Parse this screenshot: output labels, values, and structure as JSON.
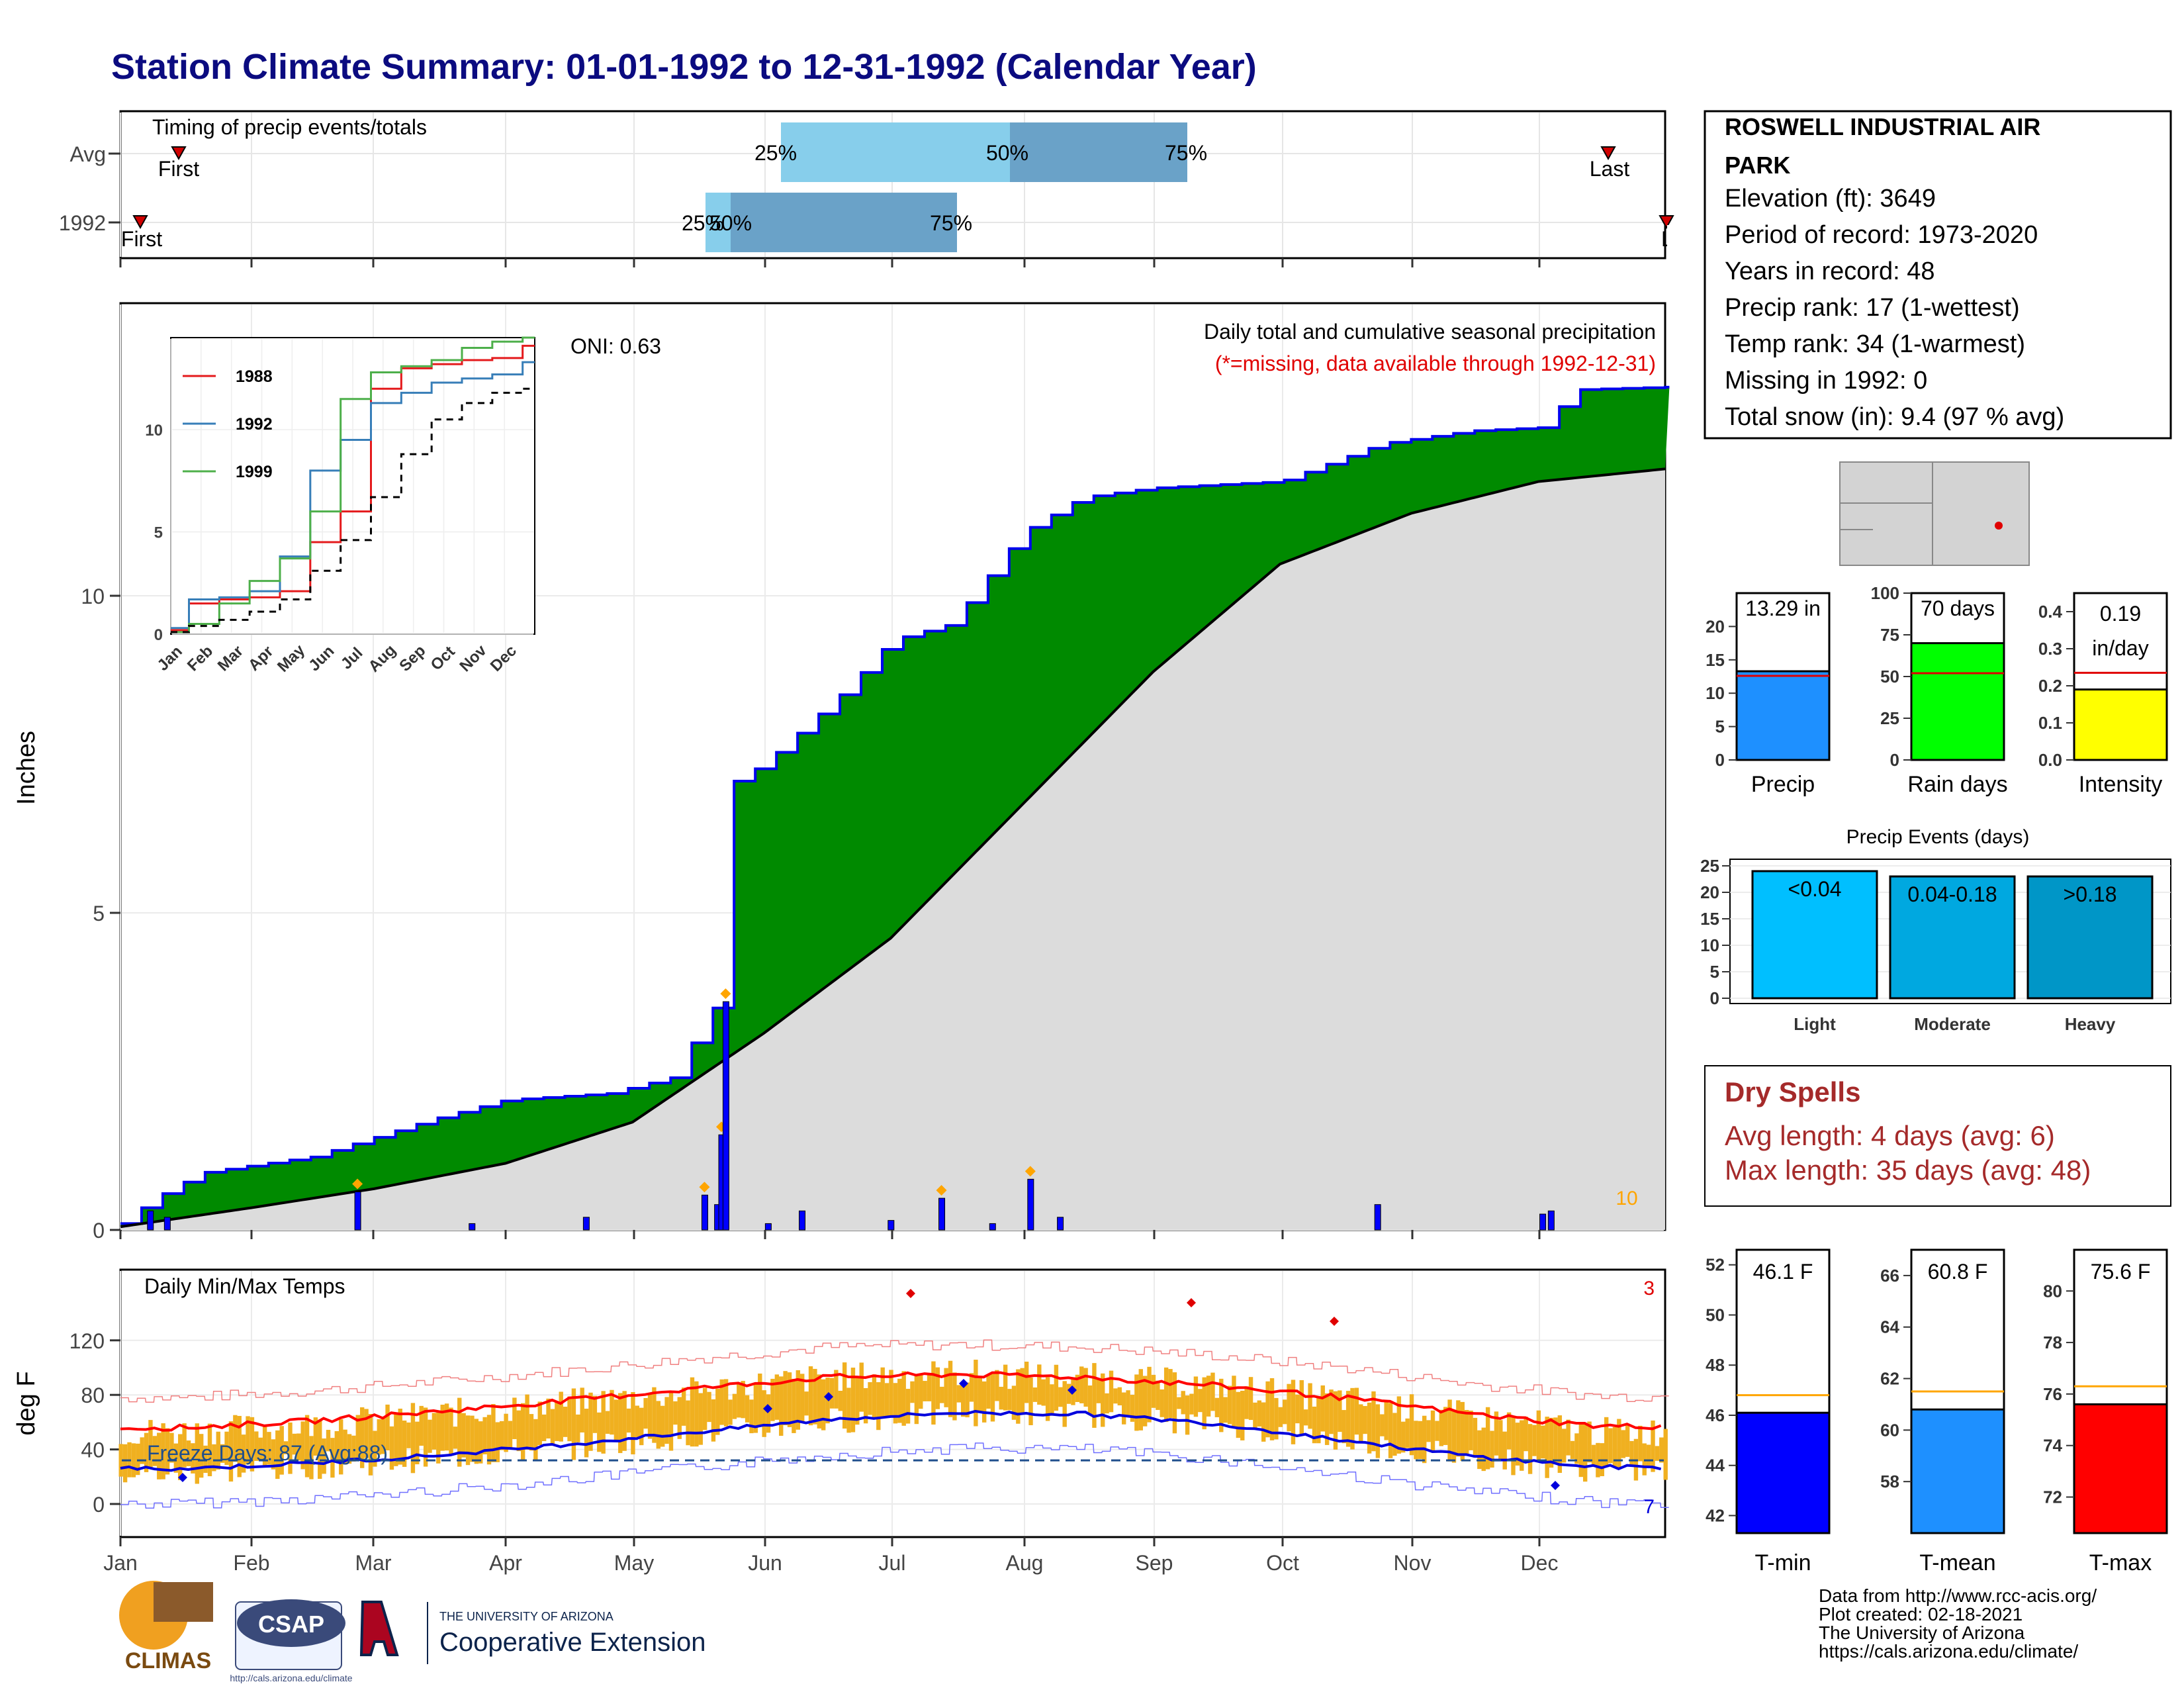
{
  "title": "Station Climate Summary: 01-01-1992 to 12-31-1992 (Calendar Year)",
  "months": [
    "Jan",
    "Feb",
    "Mar",
    "Apr",
    "May",
    "Jun",
    "Jul",
    "Aug",
    "Sep",
    "Oct",
    "Nov",
    "Dec"
  ],
  "timing_panel": {
    "label": "Timing of precip events/totals",
    "rows": [
      "Avg",
      "1992"
    ],
    "avg": {
      "q25": "25%",
      "q50": "50%",
      "q75": "75%",
      "first": "First",
      "last": "Last"
    },
    "yr": {
      "q25": "25%",
      "q50": "50%",
      "q75": "75%",
      "first": "First",
      "last": "Last"
    }
  },
  "precip_panel": {
    "ylabel": "Inches",
    "title": "Daily total and cumulative seasonal precipitation",
    "subtitle": "(*=missing, data available through 1992-12-31)",
    "oni": "ONI: 0.63",
    "count_label": "10",
    "yticks": [
      "0",
      "5",
      "10"
    ]
  },
  "inset": {
    "legend": [
      "1988",
      "1992",
      "1999"
    ],
    "yticks": [
      "0",
      "5",
      "10"
    ],
    "months": [
      "Jan",
      "Feb",
      "Mar",
      "Apr",
      "May",
      "Jun",
      "Jul",
      "Aug",
      "Sep",
      "Oct",
      "Nov",
      "Dec"
    ]
  },
  "temp_panel": {
    "ylabel": "deg F",
    "title": "Daily Min/Max Temps",
    "freeze": "Freeze Days: 87 (Avg:88)",
    "record_high_count": "3",
    "record_low_count": "7",
    "yticks": [
      "0",
      "40",
      "80",
      "120"
    ]
  },
  "station": {
    "name_line1": "ROSWELL INDUSTRIAL AIR",
    "name_line2": "PARK",
    "elevation": "Elevation (ft): 3649",
    "period": "Period of record: 1973-2020",
    "years": "Years in record: 48",
    "precip_rank": "Precip rank: 17 (1-wettest)",
    "temp_rank": "Temp rank: 34 (1-warmest)",
    "missing": "Missing in 1992: 0",
    "snow": "Total snow (in): 9.4 (97 % avg)"
  },
  "bars_top": {
    "precip": {
      "label": "Precip",
      "value_text": "13.29 in",
      "value": 13.29,
      "avg": 12.6,
      "max": 25,
      "ticks": [
        "0",
        "5",
        "10",
        "15",
        "20"
      ],
      "color": "#1e90ff"
    },
    "raindays": {
      "label": "Rain days",
      "value_text": "70 days",
      "value": 70,
      "avg": 52,
      "max": 100,
      "ticks": [
        "0",
        "25",
        "50",
        "75",
        "100"
      ],
      "color": "#00ff00"
    },
    "intensity": {
      "label": "Intensity",
      "value_text1": "0.19",
      "value_text2": "in/day",
      "value": 0.19,
      "avg": 0.235,
      "max": 0.45,
      "ticks": [
        "0.0",
        "0.1",
        "0.2",
        "0.3",
        "0.4"
      ],
      "color": "#ffff00"
    }
  },
  "precip_events": {
    "title": "Precip Events (days)",
    "ticks": [
      "0",
      "5",
      "10",
      "15",
      "20",
      "25"
    ],
    "bars": [
      {
        "name": "Light",
        "label": "<0.04",
        "value": 24,
        "color": "#00bfff"
      },
      {
        "name": "Moderate",
        "label": "0.04-0.18",
        "value": 23,
        "color": "#00a8e0"
      },
      {
        "name": "Heavy",
        "label": ">0.18",
        "value": 23,
        "color": "#0096c7"
      }
    ]
  },
  "dry_spells": {
    "title": "Dry Spells",
    "avg": "Avg length: 4 days (avg: 6)",
    "max": "Max length: 35 days (avg: 48)"
  },
  "temp_bars": {
    "tmin": {
      "label": "T-min",
      "value_text": "46.1 F",
      "value": 46.1,
      "avg": 46.8,
      "ticks": [
        "42",
        "44",
        "46",
        "48",
        "50",
        "52"
      ],
      "color": "#0000ff"
    },
    "tmean": {
      "label": "T-mean",
      "value_text": "60.8 F",
      "value": 60.8,
      "avg": 61.5,
      "ticks": [
        "58",
        "60",
        "62",
        "64",
        "66"
      ],
      "color": "#1e90ff"
    },
    "tmax": {
      "label": "T-max",
      "value_text": "75.6 F",
      "value": 75.6,
      "avg": 76.3,
      "ticks": [
        "72",
        "74",
        "76",
        "78",
        "80"
      ],
      "color": "#ff0000"
    }
  },
  "logos": {
    "climas": "CLIMAS",
    "csap": "CSAP",
    "csap_url": "http://cals.arizona.edu/climate",
    "ua_small": "THE UNIVERSITY OF ARIZONA",
    "ua_big": "Cooperative Extension"
  },
  "credits": [
    "Data from http://www.rcc-acis.org/",
    "Plot created: 02-18-2021",
    "The University of Arizona",
    "https://cals.arizona.edu/climate/"
  ],
  "chart_data": [
    {
      "type": "area",
      "title": "Daily total and cumulative seasonal precipitation",
      "ylabel": "Inches",
      "ylim": [
        0,
        13.6
      ],
      "series": [
        {
          "name": "1992",
          "x": [
            "01-01",
            "01-09",
            "01-20",
            "02-15",
            "03-15",
            "04-01",
            "04-25",
            "05-10",
            "05-20",
            "05-23",
            "06-01",
            "06-20",
            "07-01",
            "07-15",
            "08-01",
            "08-15",
            "09-01",
            "10-01",
            "10-25",
            "11-15",
            "12-01",
            "12-10",
            "12-31"
          ],
          "values": [
            0.1,
            0.5,
            0.9,
            1.15,
            1.75,
            2.05,
            2.15,
            2.4,
            3.5,
            7.0,
            7.35,
            8.5,
            9.3,
            9.55,
            11.0,
            11.55,
            11.7,
            11.8,
            12.4,
            12.6,
            12.65,
            13.25,
            13.29
          ]
        },
        {
          "x": [
            "01-01",
            "02-01",
            "03-01",
            "04-01",
            "05-01",
            "06-01",
            "07-01",
            "08-01",
            "09-01",
            "10-01",
            "11-01",
            "12-01",
            "12-31"
          ],
          "values": [
            0.05,
            0.35,
            0.65,
            1.05,
            1.7,
            3.1,
            4.6,
            6.7,
            8.8,
            10.5,
            11.3,
            11.8,
            12.0
          ]
        }
      ],
      "daily_precip": {
        "x": [
          "01-08",
          "01-12",
          "02-26",
          "03-24",
          "04-20",
          "05-18",
          "05-21",
          "05-22",
          "05-23",
          "06-02",
          "06-10",
          "07-01",
          "07-13",
          "07-25",
          "08-03",
          "08-10",
          "10-24",
          "12-02",
          "12-04"
        ],
        "values": [
          0.3,
          0.2,
          0.6,
          0.1,
          0.2,
          0.55,
          0.4,
          1.5,
          3.6,
          0.1,
          0.3,
          0.15,
          0.5,
          0.1,
          0.8,
          0.2,
          0.4,
          0.25,
          0.3
        ]
      }
    },
    {
      "type": "line",
      "title": "",
      "x": [
        "Jan",
        "Feb",
        "Mar",
        "Apr",
        "May",
        "Jun",
        "Jul",
        "Aug",
        "Sep",
        "Oct",
        "Nov",
        "Dec",
        "Dec-end"
      ],
      "ylim": [
        0,
        14
      ],
      "series": [
        {
          "name": "1988",
          "values": [
            0.2,
            1.5,
            1.7,
            1.8,
            2.1,
            4.5,
            6.0,
            12.0,
            13.0,
            13.2,
            13.4,
            13.5,
            14.1
          ]
        },
        {
          "name": "1992",
          "values": [
            0.3,
            1.7,
            1.8,
            2.1,
            3.8,
            8.0,
            9.5,
            11.3,
            11.8,
            12.3,
            12.5,
            12.7,
            13.3
          ]
        },
        {
          "name": "1999",
          "values": [
            0.1,
            0.5,
            1.5,
            2.6,
            3.7,
            6.0,
            11.5,
            12.8,
            13.1,
            13.4,
            14.0,
            14.3,
            14.5
          ]
        },
        {
          "values": [
            0.1,
            0.4,
            0.7,
            1.1,
            1.7,
            3.1,
            4.6,
            6.7,
            8.8,
            10.5,
            11.3,
            11.8,
            12.0
          ]
        }
      ]
    },
    {
      "type": "bar",
      "title": "Daily Min/Max Temps",
      "ylabel": "deg F",
      "ylim": [
        -15,
        120
      ],
      "categories": [
        "Jan",
        "Feb",
        "Mar",
        "Apr",
        "May",
        "Jun",
        "Jul",
        "Aug",
        "Sep",
        "Oct",
        "Nov",
        "Dec"
      ],
      "series": [
        {
          "values_high": [
            53,
            58,
            66,
            74,
            83,
            93,
            96,
            93,
            87,
            77,
            64,
            53
          ]
        },
        {
          "values_low": [
            23,
            28,
            34,
            42,
            51,
            61,
            67,
            66,
            59,
            47,
            34,
            25
          ]
        },
        {
          "values_avg_max": [
            56,
            61,
            68,
            76,
            85,
            93,
            95,
            93,
            87,
            78,
            66,
            57
          ]
        },
        {
          "values_avg_min": [
            26,
            30,
            36,
            44,
            53,
            62,
            67,
            66,
            59,
            47,
            35,
            27
          ]
        }
      ],
      "freeze_threshold": 32
    },
    {
      "type": "bar",
      "categories": [
        "Light",
        "Moderate",
        "Heavy"
      ],
      "values": [
        24,
        23,
        23
      ],
      "title": "Precip Events (days)"
    }
  ]
}
